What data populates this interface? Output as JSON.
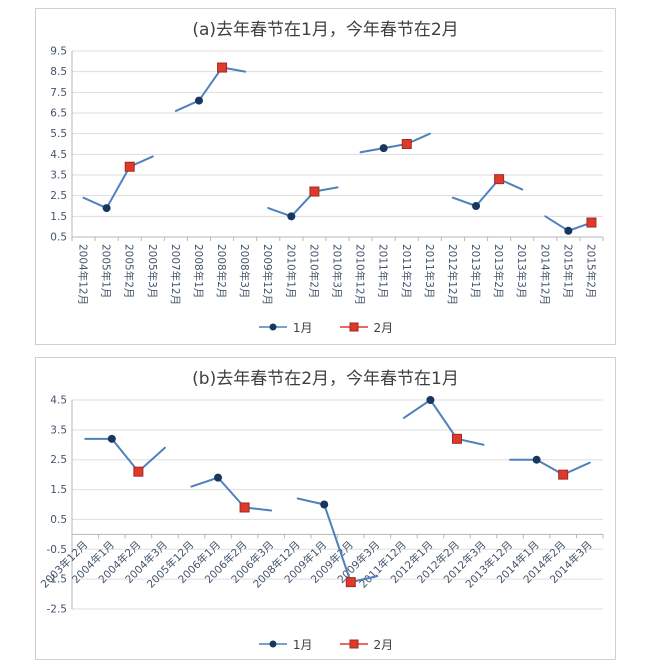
{
  "page": {
    "background_color": "#ffffff"
  },
  "chart_data": [
    {
      "type": "line",
      "title": "(a)去年春节在1月，今年春节在2月",
      "ylim": [
        0.5,
        9.5
      ],
      "ytick_labels": [
        "0.5",
        "1.5",
        "2.5",
        "3.5",
        "4.5",
        "5.5",
        "6.5",
        "7.5",
        "8.5",
        "9.5"
      ],
      "x_axis_cross": 0.5,
      "x_label_rotation": 90,
      "grid": true,
      "legend_position": "bottom",
      "categories": [
        "2004年12月",
        "2005年1月",
        "2005年2月",
        "2005年3月",
        "2007年12月",
        "2008年1月",
        "2008年2月",
        "2008年3月",
        "2009年12月",
        "2010年1月",
        "2010年2月",
        "2010年3月",
        "2010年12月",
        "2011年1月",
        "2011年2月",
        "2011年3月",
        "2012年12月",
        "2013年1月",
        "2013年2月",
        "2013年3月",
        "2014年12月",
        "2015年1月",
        "2015年2月"
      ],
      "groups": [
        {
          "start": 0,
          "values": [
            2.4,
            1.9,
            3.9,
            4.4
          ]
        },
        {
          "start": 4,
          "values": [
            6.6,
            7.1,
            8.7,
            8.5
          ]
        },
        {
          "start": 8,
          "values": [
            1.9,
            1.5,
            2.7,
            2.9
          ]
        },
        {
          "start": 12,
          "values": [
            4.6,
            4.8,
            5.0,
            5.5
          ]
        },
        {
          "start": 16,
          "values": [
            2.4,
            2.0,
            3.3,
            2.8
          ]
        },
        {
          "start": 20,
          "values": [
            1.5,
            0.8,
            1.2
          ]
        }
      ],
      "jan_index_in_group": 1,
      "feb_index_in_group": 2,
      "series_legend": [
        {
          "label": "1月",
          "marker": "circle",
          "line_color": "#4f81bd",
          "marker_color": "#17375e"
        },
        {
          "label": "2月",
          "marker": "square",
          "line_color": "#e0392c",
          "marker_color": "#e0392c",
          "marker_border": "#9c2d22"
        }
      ]
    },
    {
      "type": "line",
      "title": "(b)去年春节在2月，今年春节在1月",
      "ylim": [
        -2.5,
        4.5
      ],
      "ytick_labels": [
        "-2.5",
        "-1.5",
        "-0.5",
        "0.5",
        "1.5",
        "2.5",
        "3.5",
        "4.5"
      ],
      "x_axis_cross": 0,
      "x_label_rotation": 45,
      "grid": true,
      "legend_position": "bottom",
      "categories": [
        "2003年12月",
        "2004年1月",
        "2004年2月",
        "2004年3月",
        "2005年12月",
        "2006年1月",
        "2006年2月",
        "2006年3月",
        "2008年12月",
        "2009年1月",
        "2009年2月",
        "2009年3月",
        "2011年12月",
        "2012年1月",
        "2012年2月",
        "2012年3月",
        "2013年12月",
        "2014年1月",
        "2014年2月",
        "2014年3月"
      ],
      "groups": [
        {
          "start": 0,
          "values": [
            3.2,
            3.2,
            2.1,
            2.9
          ]
        },
        {
          "start": 4,
          "values": [
            1.6,
            1.9,
            0.9,
            0.8
          ]
        },
        {
          "start": 8,
          "values": [
            1.2,
            1.0,
            -1.6,
            -1.4
          ]
        },
        {
          "start": 12,
          "values": [
            3.9,
            4.5,
            3.2,
            3.0
          ]
        },
        {
          "start": 16,
          "values": [
            2.5,
            2.5,
            2.0,
            2.4
          ]
        }
      ],
      "jan_index_in_group": 1,
      "feb_index_in_group": 2,
      "series_legend": [
        {
          "label": "1月",
          "marker": "circle",
          "line_color": "#4f81bd",
          "marker_color": "#17375e"
        },
        {
          "label": "2月",
          "marker": "square",
          "line_color": "#e0392c",
          "marker_color": "#e0392c",
          "marker_border": "#9c2d22"
        }
      ]
    }
  ]
}
